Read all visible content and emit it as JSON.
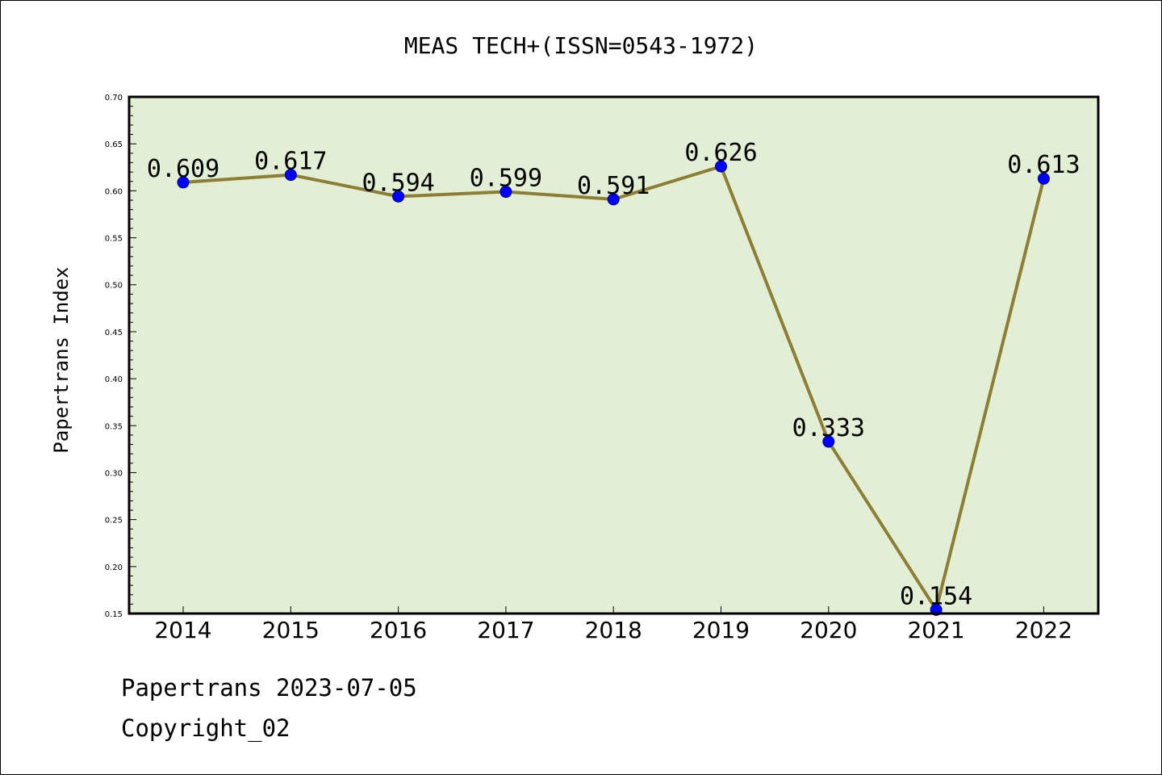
{
  "chart_data": {
    "type": "line",
    "title": "MEAS TECH+(ISSN=0543-1972)",
    "xlabel": "",
    "ylabel": "Papertrans Index",
    "categories": [
      "2014",
      "2015",
      "2016",
      "2017",
      "2018",
      "2019",
      "2020",
      "2021",
      "2022"
    ],
    "series": [
      {
        "values": [
          0.609,
          0.617,
          0.594,
          0.599,
          0.591,
          0.626,
          0.333,
          0.154,
          0.613
        ]
      }
    ],
    "data_labels": [
      "0.609",
      "0.617",
      "0.594",
      "0.599",
      "0.591",
      "0.626",
      "0.333",
      "0.154",
      "0.613"
    ],
    "ylim": [
      0.15,
      0.7
    ],
    "yticks": [
      "0.15",
      "0.20",
      "0.25",
      "0.30",
      "0.35",
      "0.40",
      "0.45",
      "0.50",
      "0.55",
      "0.60",
      "0.65",
      "0.70"
    ],
    "grid": false,
    "legend": "none",
    "colors": {
      "plot_background": "#e2efd4",
      "line": "#8c7e35",
      "marker": "#0000ff",
      "axes": "#000000"
    }
  },
  "footer": {
    "line1": "Papertrans 2023-07-05",
    "line2": "Copyright_02"
  }
}
